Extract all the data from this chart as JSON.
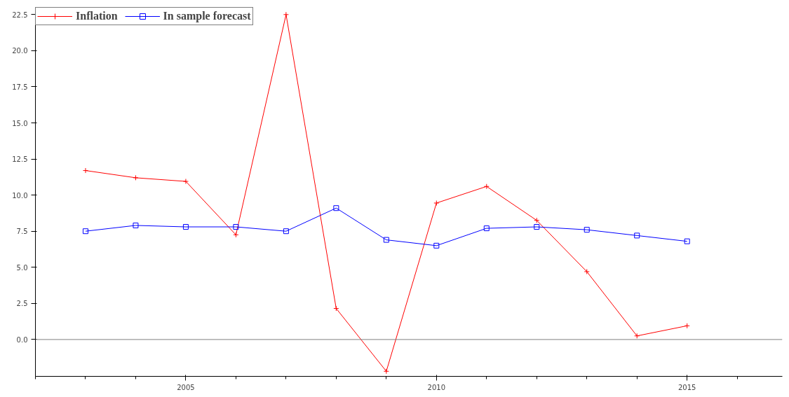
{
  "chart_data": {
    "type": "line",
    "x": [
      2003,
      2004,
      2005,
      2006,
      2007,
      2008,
      2009,
      2010,
      2011,
      2012,
      2013,
      2014,
      2015
    ],
    "series": [
      {
        "name": "Inflation",
        "color": "#ff0000",
        "marker": "cross",
        "values": [
          11.7,
          11.2,
          10.95,
          7.25,
          22.5,
          2.15,
          -2.2,
          9.45,
          10.6,
          8.25,
          4.7,
          0.25,
          0.95
        ]
      },
      {
        "name": "In sample forecast",
        "color": "#0000ff",
        "marker": "square",
        "values": [
          7.5,
          7.9,
          7.8,
          7.8,
          7.5,
          9.1,
          6.9,
          6.5,
          7.7,
          7.8,
          7.6,
          7.2,
          6.8
        ]
      }
    ],
    "xlim": [
      2002.0,
      2016.9
    ],
    "xticks": [
      2005,
      2010,
      2015
    ],
    "ylim": [
      -2.55,
      23.0
    ],
    "yticks": [
      {
        "value": 0,
        "label": "0.0"
      },
      {
        "value": 2.5,
        "label": "2.5"
      },
      {
        "value": 5,
        "label": "5.0"
      },
      {
        "value": 7.5,
        "label": "7.5"
      },
      {
        "value": 10,
        "label": "10.0"
      },
      {
        "value": 12.5,
        "label": "12.5"
      },
      {
        "value": 15,
        "label": "15.0"
      },
      {
        "value": 17.5,
        "label": "17.5"
      },
      {
        "value": 20,
        "label": "20.0"
      },
      {
        "value": 22.5,
        "label": "22.5"
      }
    ],
    "ref_lines": [
      {
        "axis": "y",
        "value": 0,
        "color": "#808080"
      }
    ],
    "grid": false,
    "legend": "top left",
    "line_style": "solid"
  }
}
